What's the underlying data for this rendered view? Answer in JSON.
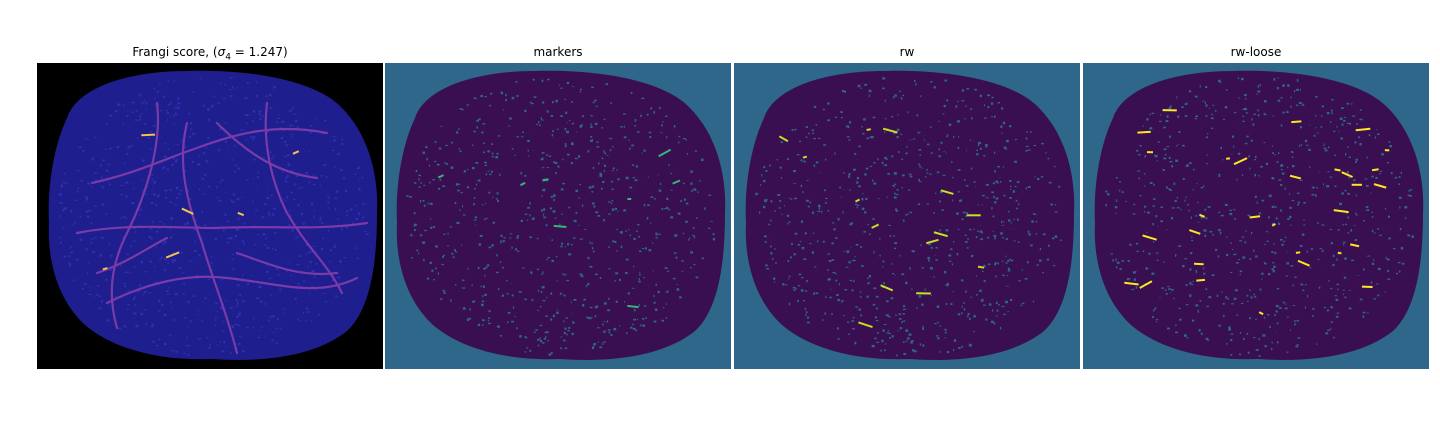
{
  "figure": {
    "panels": [
      {
        "id": "frangi",
        "title_prefix": "Frangi score, (",
        "title_symbol": "σ",
        "title_subscript": "4",
        "title_suffix": " = 1.247)",
        "background_color": "#000000",
        "blob_color": "#1e1e8f",
        "vessel_color": "#7a3aa8",
        "highlight_color": "#f2c14e"
      },
      {
        "id": "markers",
        "title": "markers",
        "background_color": "#2f678a",
        "blob_color": "#3a0f52",
        "vessel_color": "#3a0f52",
        "highlight_color": "#35b779"
      },
      {
        "id": "rw",
        "title": "rw",
        "background_color": "#2f678a",
        "blob_color": "#3a0f52",
        "vessel_color": "#3a0f52",
        "highlight_color": "#c8e020"
      },
      {
        "id": "rw-loose",
        "title": "rw-loose",
        "background_color": "#2f678a",
        "blob_color": "#3a0f52",
        "vessel_color": "#3a0f52",
        "highlight_color": "#fde725"
      }
    ]
  }
}
